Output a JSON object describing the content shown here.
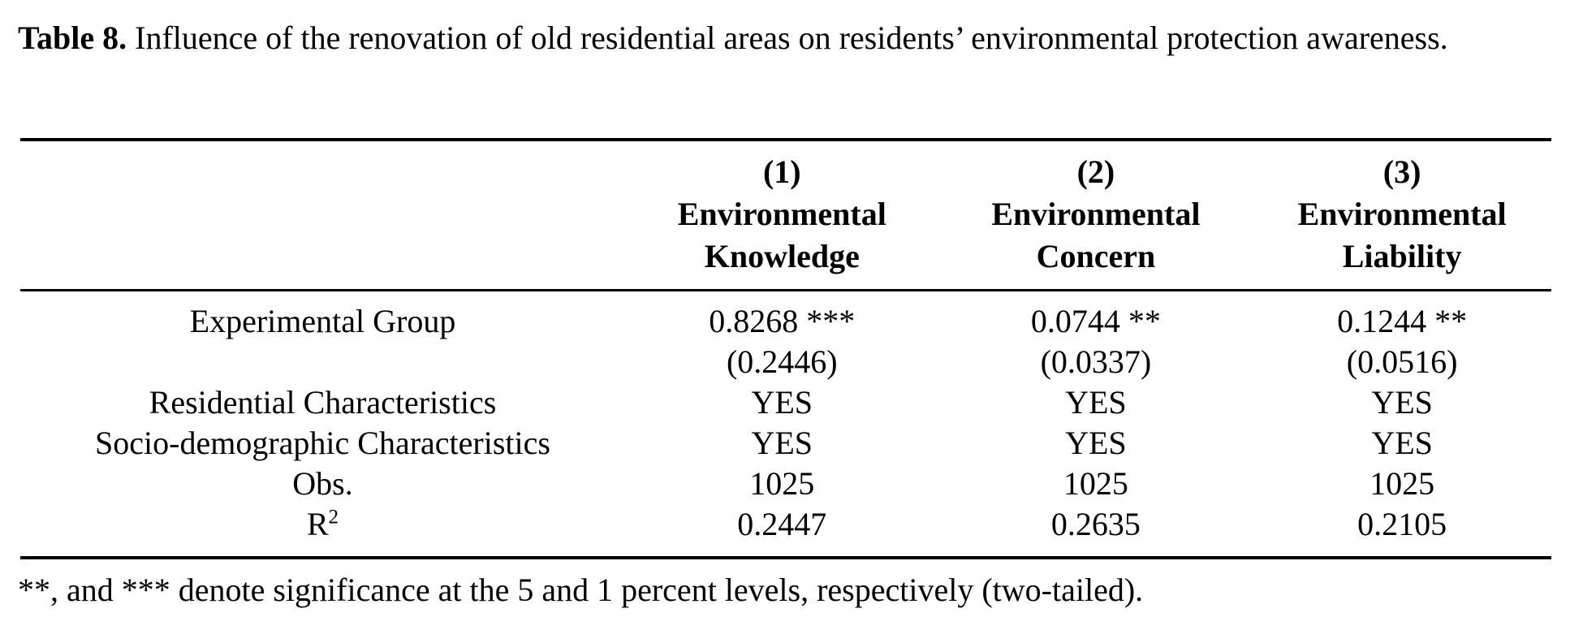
{
  "page": {
    "background_color": "#ffffff",
    "text_color": "#000000"
  },
  "caption": {
    "label": "Table 8.",
    "text": " Influence of the renovation of old residential areas on residents’ environmental protection awareness."
  },
  "table": {
    "columns": [
      {
        "number": "",
        "line1": "",
        "line2": ""
      },
      {
        "number": "(1)",
        "line1": "Environmental",
        "line2": "Knowledge"
      },
      {
        "number": "(2)",
        "line1": "Environmental",
        "line2": "Concern"
      },
      {
        "number": "(3)",
        "line1": "Environmental",
        "line2": "Liability"
      }
    ],
    "rows": [
      {
        "label": "Experimental Group",
        "c1": "0.8268 ***",
        "c2": "0.0744 **",
        "c3": "0.1244 **"
      },
      {
        "label": "",
        "c1": "(0.2446)",
        "c2": "(0.0337)",
        "c3": "(0.0516)"
      },
      {
        "label": "Residential Characteristics",
        "c1": "YES",
        "c2": "YES",
        "c3": "YES"
      },
      {
        "label": "Socio-demographic Characteristics",
        "c1": "YES",
        "c2": "YES",
        "c3": "YES"
      },
      {
        "label": "Obs.",
        "c1": "1025",
        "c2": "1025",
        "c3": "1025"
      },
      {
        "label": "R",
        "label_sup": "2",
        "c1": "0.2447",
        "c2": "0.2635",
        "c3": "0.2105"
      }
    ]
  },
  "footnote": {
    "text": "**, and *** denote significance at the 5 and 1 percent levels, respectively (two-tailed)."
  }
}
